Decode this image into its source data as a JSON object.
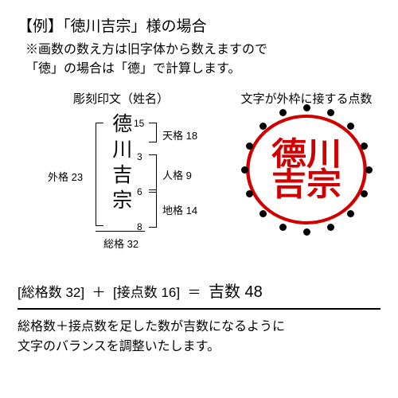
{
  "title": "【例】「徳川吉宗」様の場合",
  "note_line1": "※画数の数え方は旧字体から数えますので",
  "note_line2": "「徳」の場合は「德」で計算します。",
  "left_heading": "彫刻印文（姓名）",
  "right_heading": "文字が外枠に接する点数",
  "name_chars": "德川吉宗",
  "strokes": {
    "c1": "15",
    "c2": "3",
    "c3": "6",
    "c4": "8"
  },
  "kaku": {
    "ten": "天格 18",
    "jin": "人格 9",
    "chi": "地格 14",
    "gai": "外格 23",
    "sou": "総格 32"
  },
  "seal_line1": "德川",
  "seal_line2": "吉宗",
  "equation": {
    "part1": "[総格数 32]",
    "plus": "＋",
    "part2": "[接点数 16]",
    "eq": "＝",
    "result": "吉数 48"
  },
  "footer_line1": "総格数＋接点数を足した数が吉数になるように",
  "footer_line2": "文字のバランスを調整いたします。",
  "dot_count": 16,
  "colors": {
    "seal": "#d00000",
    "text": "#000000",
    "bg": "#ffffff"
  }
}
